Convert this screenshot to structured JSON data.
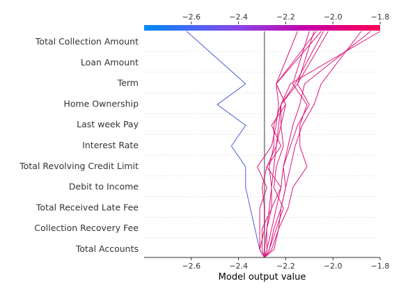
{
  "chart_data": {
    "type": "line",
    "subtype": "shap-decision-plot",
    "xlabel": "Model output value",
    "xlim": [
      -2.8,
      -1.8
    ],
    "ticks": [
      -2.6,
      -2.4,
      -2.2,
      -2.0,
      -1.8
    ],
    "tick_labels": [
      "−2.6",
      "−2.4",
      "−2.2",
      "−2.0",
      "−1.8"
    ],
    "base_value": -2.29,
    "features": [
      "Total Collection Amount",
      "Loan Amount",
      "Term",
      "Home Ownership",
      "Last week Pay",
      "Interest Rate",
      "Total Revolving Credit Limit",
      "Debit to Income",
      "Total Received Late Fee",
      "Collection Recovery Fee",
      "Total Accounts"
    ],
    "colormap": [
      "#008bfb",
      "#8a44e8",
      "#c700a6",
      "#ff0052"
    ],
    "grid": "dotted-horizontal",
    "series": [
      {
        "color": "#4c5ddb",
        "values": [
          -2.29,
          -2.31,
          -2.33,
          -2.35,
          -2.37,
          -2.37,
          -2.43,
          -2.37,
          -2.49,
          -2.37,
          -2.62
        ]
      },
      {
        "color": "#e0117a",
        "values": [
          -2.29,
          -2.29,
          -2.28,
          -2.27,
          -2.26,
          -2.25,
          -2.24,
          -2.23,
          -2.22,
          -2.18,
          -1.8
        ]
      },
      {
        "color": "#de1178",
        "values": [
          -2.29,
          -2.28,
          -2.26,
          -2.24,
          -2.22,
          -2.21,
          -2.19,
          -2.17,
          -2.14,
          -2.12,
          -1.84
        ]
      },
      {
        "color": "#dd127a",
        "values": [
          -2.29,
          -2.27,
          -2.25,
          -2.22,
          -2.2,
          -2.18,
          -2.16,
          -2.13,
          -2.08,
          -2.05,
          -1.88
        ]
      },
      {
        "color": "#dc1379",
        "values": [
          -2.29,
          -2.26,
          -2.23,
          -2.19,
          -2.17,
          -2.11,
          -2.14,
          -2.14,
          -2.11,
          -2.17,
          -2.1
        ]
      },
      {
        "color": "#db157a",
        "values": [
          -2.29,
          -2.27,
          -2.24,
          -2.21,
          -2.25,
          -2.24,
          -2.21,
          -2.22,
          -2.2,
          -2.24,
          -2.07
        ]
      },
      {
        "color": "#dd147b",
        "values": [
          -2.29,
          -2.28,
          -2.28,
          -2.26,
          -2.26,
          -2.27,
          -2.25,
          -2.25,
          -2.22,
          -2.16,
          -2.04
        ]
      },
      {
        "color": "#da1677",
        "values": [
          -2.29,
          -2.31,
          -2.29,
          -2.29,
          -2.3,
          -2.28,
          -2.24,
          -2.22,
          -2.22,
          -2.15,
          -2.08
        ]
      },
      {
        "color": "#da1678",
        "values": [
          -2.29,
          -2.3,
          -2.3,
          -2.26,
          -2.22,
          -2.28,
          -2.22,
          -2.26,
          -2.2,
          -2.24,
          -2.15
        ]
      },
      {
        "color": "#d9177a",
        "values": [
          -2.29,
          -2.25,
          -2.23,
          -2.22,
          -2.2,
          -2.21,
          -2.18,
          -2.15,
          -2.1,
          -2.15,
          -2.02
        ]
      },
      {
        "color": "#dd1279",
        "values": [
          -2.29,
          -2.31,
          -2.31,
          -2.31,
          -2.28,
          -2.32,
          -2.26,
          -2.24,
          -2.23,
          -2.24,
          -2.05
        ]
      }
    ]
  }
}
